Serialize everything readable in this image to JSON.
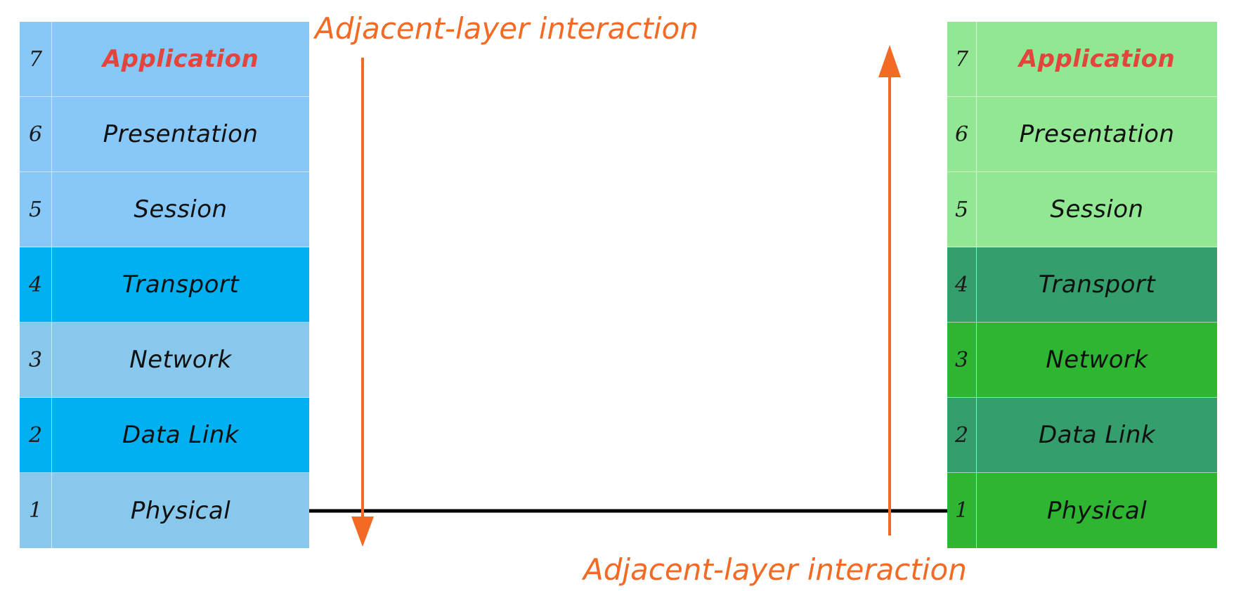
{
  "captions": {
    "top": "Adjacent-layer interaction",
    "bottom": "Adjacent-layer interaction"
  },
  "left_stack": {
    "layers": [
      {
        "num": "7",
        "name": "Application",
        "color": "#87c8f8"
      },
      {
        "num": "6",
        "name": "Presentation",
        "color": "#87c8f8"
      },
      {
        "num": "5",
        "name": "Session",
        "color": "#87c8f8"
      },
      {
        "num": "4",
        "name": "Transport",
        "color": "#00b0f0"
      },
      {
        "num": "3",
        "name": "Network",
        "color": "#87c8ec"
      },
      {
        "num": "2",
        "name": "Data Link",
        "color": "#00b0f0"
      },
      {
        "num": "1",
        "name": "Physical",
        "color": "#87c8ec"
      }
    ]
  },
  "right_stack": {
    "layers": [
      {
        "num": "7",
        "name": "Application",
        "color": "#92e892"
      },
      {
        "num": "6",
        "name": "Presentation",
        "color": "#92e892"
      },
      {
        "num": "5",
        "name": "Session",
        "color": "#92e892"
      },
      {
        "num": "4",
        "name": "Transport",
        "color": "#349e6c"
      },
      {
        "num": "3",
        "name": "Network",
        "color": "#2eb531"
      },
      {
        "num": "2",
        "name": "Data Link",
        "color": "#349e6c"
      },
      {
        "num": "1",
        "name": "Physical",
        "color": "#2eb531"
      }
    ]
  },
  "colors": {
    "accent": "#f26a24",
    "application_text": "#e2453b",
    "link": "#000000"
  }
}
